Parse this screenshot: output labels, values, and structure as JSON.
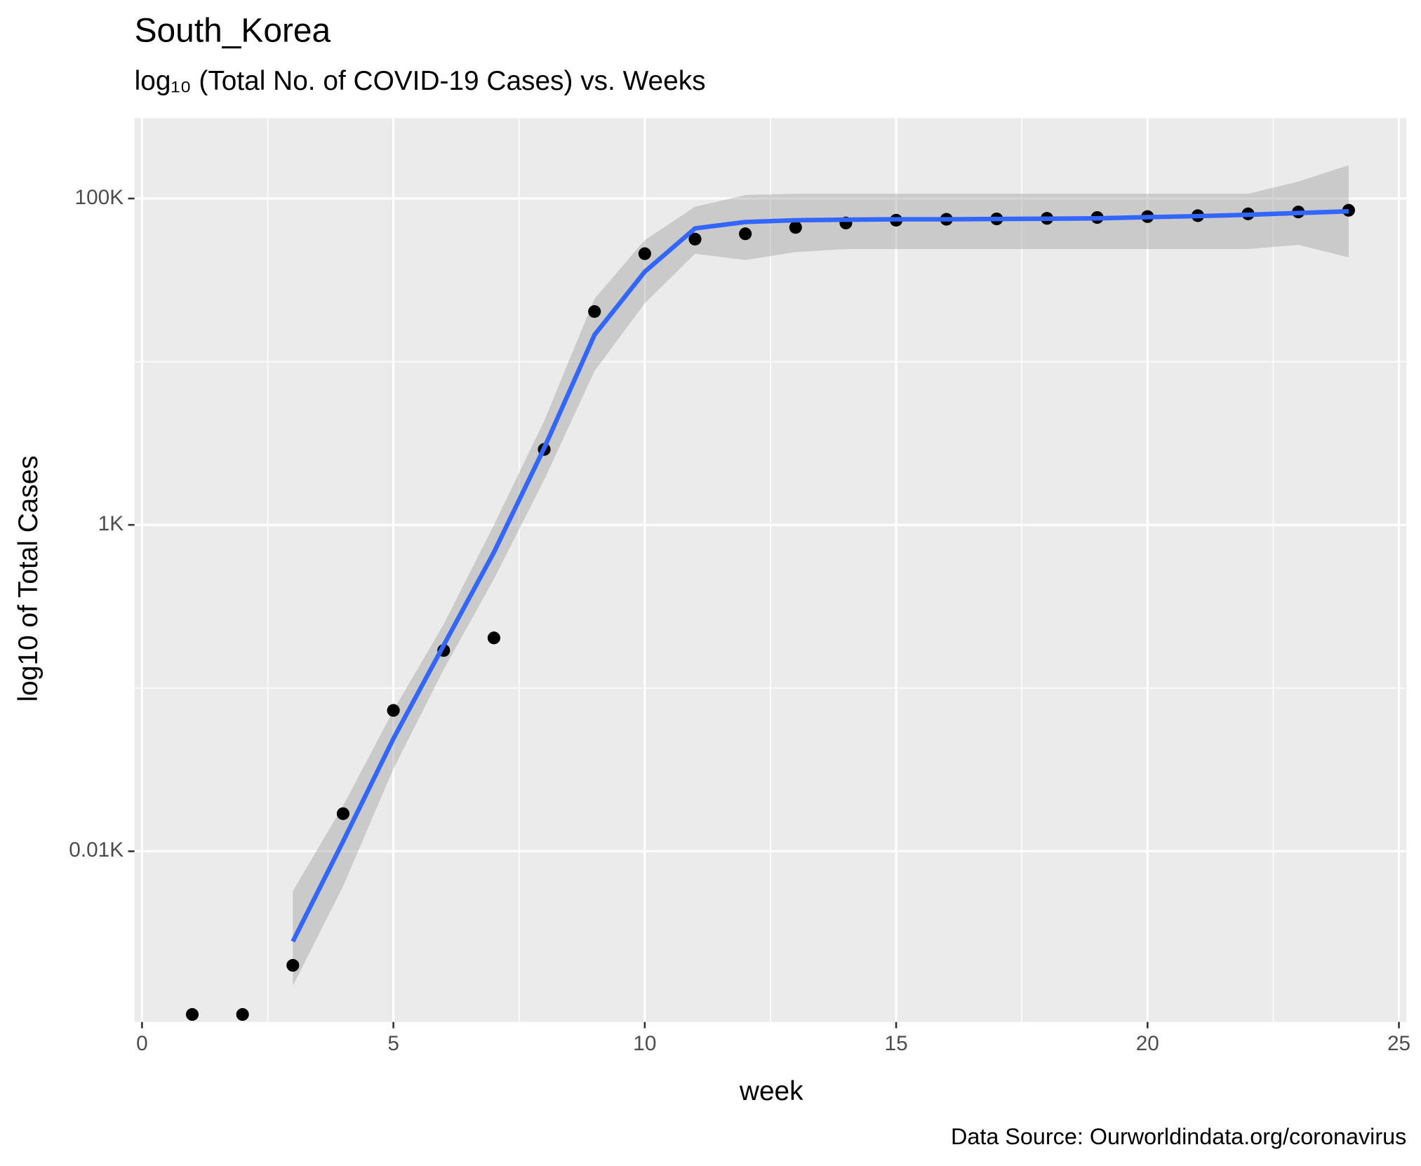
{
  "chart_data": {
    "type": "scatter",
    "title": "South_Korea",
    "subtitle": "log₁₀ (Total No. of COVID-19 Cases) vs. Weeks",
    "x_label": "week",
    "y_label": "log10 of Total Cases",
    "caption": "Data Source: Ourworldindata.org/coronavirus",
    "x": [
      1,
      2,
      3,
      4,
      5,
      6,
      7,
      8,
      9,
      10,
      11,
      12,
      13,
      14,
      15,
      16,
      17,
      18,
      19,
      20,
      21,
      22,
      23,
      24
    ],
    "values": [
      1,
      1,
      2,
      17,
      73,
      170,
      203,
      2900,
      20300,
      45900,
      56400,
      60800,
      66500,
      70800,
      73600,
      74600,
      75000,
      75600,
      76500,
      77500,
      78500,
      80500,
      82700,
      84700
    ],
    "color": "#000000",
    "smooth": {
      "x": [
        3,
        4,
        5,
        6,
        7,
        8,
        9,
        10,
        11,
        12,
        13,
        14,
        15,
        16,
        17,
        18,
        19,
        20,
        21,
        22,
        23,
        24
      ],
      "values": [
        2.8,
        11.5,
        49,
        183,
        680,
        2960,
        14600,
        35600,
        65600,
        71800,
        73600,
        74200,
        74600,
        74600,
        74900,
        75200,
        75600,
        76900,
        78000,
        79500,
        81500,
        83500
      ],
      "lower": [
        1.5,
        6.1,
        32,
        130,
        466,
        1890,
        8750,
        22800,
        45900,
        42000,
        47000,
        49000,
        49000,
        49000,
        49000,
        49000,
        49000,
        49000,
        49000,
        49000,
        52000,
        43600
      ],
      "upper": [
        5.7,
        19,
        73,
        246,
        1000,
        4340,
        24300,
        55600,
        89100,
        105000,
        107000,
        107000,
        107000,
        107000,
        107000,
        107000,
        107000,
        107000,
        107000,
        107000,
        127000,
        160000
      ],
      "color": "#3366FF",
      "band_color": "#999999"
    },
    "log_y": true,
    "grid": true,
    "panel_color": "#EBEBEB",
    "xlim": [
      -0.15,
      25.15
    ],
    "ylim": [
      0.9,
      311000
    ],
    "xticks": [
      0,
      5,
      10,
      15,
      20,
      25
    ],
    "x_minor_ticks": [
      2.5,
      7.5,
      12.5,
      17.5,
      22.5
    ],
    "yticks": [
      {
        "value": 10,
        "label": "0.01K"
      },
      {
        "value": 1000,
        "label": "1K"
      },
      {
        "value": 100000,
        "label": "100K"
      }
    ],
    "y_minor_ticks": [
      100,
      10000
    ]
  }
}
